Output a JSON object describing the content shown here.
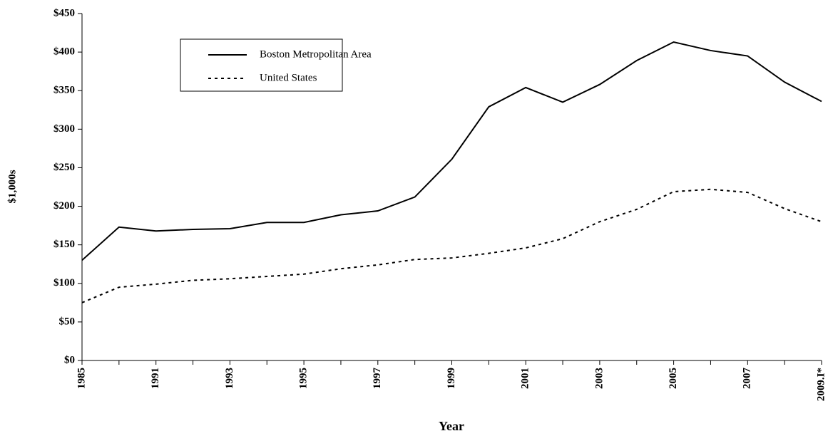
{
  "chart_data": {
    "type": "line",
    "x_label": "Year",
    "y_label": "$1,000s",
    "categories": [
      "1985",
      null,
      "1991",
      null,
      "1993",
      null,
      "1995",
      null,
      "1997",
      null,
      "1999",
      null,
      "2001",
      null,
      "2003",
      null,
      "2005",
      null,
      "2007",
      null,
      "2009.I*"
    ],
    "series": [
      {
        "name": "Boston Metropolitan Area",
        "color": "#000000",
        "line_style": "solid",
        "values": [
          130,
          173,
          168,
          170,
          171,
          179,
          179,
          189,
          194,
          212,
          261,
          329,
          354,
          335,
          358,
          389,
          413,
          402,
          395,
          361,
          336
        ]
      },
      {
        "name": "United States",
        "color": "#000000",
        "line_style": "dashed",
        "values": [
          75,
          95,
          99,
          104,
          106,
          109,
          112,
          119,
          124,
          131,
          133,
          139,
          146,
          158,
          180,
          196,
          219,
          222,
          218,
          197,
          180
        ]
      }
    ],
    "ylim": [
      0,
      450
    ],
    "yticks": [
      {
        "value": 0,
        "label": "$0"
      },
      {
        "value": 50,
        "label": "$50"
      },
      {
        "value": 100,
        "label": "$100"
      },
      {
        "value": 150,
        "label": "$150"
      },
      {
        "value": 200,
        "label": "$200"
      },
      {
        "value": 250,
        "label": "$250"
      },
      {
        "value": 300,
        "label": "$300"
      },
      {
        "value": 350,
        "label": "$350"
      },
      {
        "value": 400,
        "label": "$400"
      },
      {
        "value": 450,
        "label": "$450"
      }
    ],
    "grid": false
  }
}
